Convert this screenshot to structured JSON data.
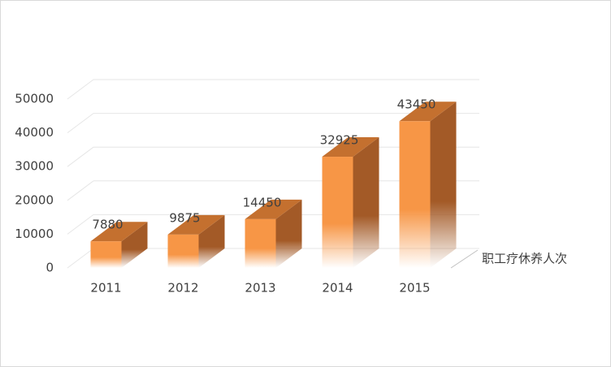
{
  "chart_data": {
    "type": "bar3d",
    "categories": [
      "2011",
      "2012",
      "2013",
      "2014",
      "2015"
    ],
    "series": [
      {
        "name": "职工疗休养人次",
        "color": "#f79646",
        "values": [
          7880,
          9875,
          14450,
          32925,
          43450
        ]
      }
    ],
    "ylim": [
      0,
      50000
    ],
    "yticks": [
      0,
      10000,
      20000,
      30000,
      40000,
      50000
    ],
    "grid": true
  }
}
